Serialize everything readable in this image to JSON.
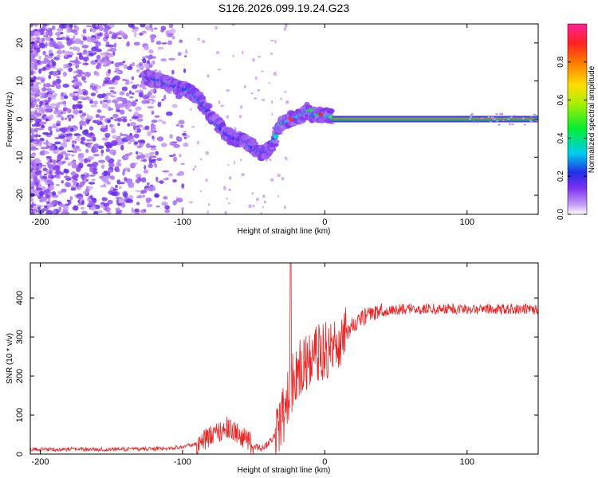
{
  "page": {
    "title": "S126.2026.099.19.24.G23"
  },
  "chart_data": [
    {
      "type": "heatmap",
      "title": "S126.2026.099.19.24.G23",
      "xlabel": "Height of straight line (km)",
      "ylabel": "Frequency (Hz)",
      "xlim": [
        -207,
        150
      ],
      "ylim": [
        -25,
        25
      ],
      "xticks": [
        -200,
        -100,
        0,
        100
      ],
      "yticks": [
        -20,
        -10,
        0,
        10,
        20
      ],
      "colorbar": {
        "label": "Normalized spectral amplitude",
        "range": [
          0,
          1
        ],
        "ticks": [
          0.0,
          0.2,
          0.4,
          0.6,
          0.8
        ],
        "tick_labels": [
          "0.0",
          "0.2",
          "0.4",
          "0.6",
          "0.8"
        ]
      },
      "ridge": {
        "description_points_km_hz": [
          [
            -125,
            11
          ],
          [
            -115,
            10
          ],
          [
            -105,
            8.5
          ],
          [
            -95,
            7.5
          ],
          [
            -88,
            5
          ],
          [
            -82,
            2
          ],
          [
            -76,
            -1
          ],
          [
            -70,
            -3.5
          ],
          [
            -65,
            -5
          ],
          [
            -60,
            -5.5
          ],
          [
            -55,
            -6
          ],
          [
            -50,
            -7.5
          ],
          [
            -45,
            -9
          ],
          [
            -40,
            -8
          ],
          [
            -35,
            -5
          ],
          [
            -32,
            -1.5
          ],
          [
            -28,
            -1
          ],
          [
            -24,
            0
          ],
          [
            -20,
            0.5
          ],
          [
            -15,
            1.2
          ],
          [
            -12,
            2.5
          ],
          [
            -10,
            1
          ],
          [
            -5,
            1.2
          ],
          [
            0,
            1
          ],
          [
            5,
            0.5
          ]
        ],
        "steady_band_from_km": 5,
        "steady_band_freq_hz": 0
      }
    },
    {
      "type": "line",
      "xlabel": "Height of straight line (km)",
      "ylabel": "SNR (10 * v/v)",
      "xlim": [
        -207,
        150
      ],
      "ylim": [
        0,
        490
      ],
      "xticks": [
        -200,
        -100,
        0,
        100
      ],
      "yticks": [
        0,
        100,
        200,
        300,
        400
      ],
      "series": [
        {
          "name": "SNR",
          "color": "#ee2222",
          "envelope_x": [
            -207,
            -150,
            -110,
            -90,
            -80,
            -70,
            -62,
            -55,
            -50,
            -45,
            -40,
            -35,
            -30,
            -25,
            -22,
            -18,
            -15,
            -10,
            -5,
            0,
            5,
            10,
            15,
            20,
            25,
            30,
            40,
            50,
            60,
            80,
            100,
            120,
            150
          ],
          "envelope_y": [
            12,
            12,
            14,
            25,
            45,
            70,
            55,
            35,
            20,
            15,
            25,
            50,
            90,
            150,
            200,
            220,
            230,
            245,
            260,
            265,
            275,
            290,
            310,
            330,
            345,
            355,
            365,
            370,
            372,
            372,
            372,
            372,
            372
          ],
          "spike": {
            "x": -24,
            "y": 490
          }
        }
      ]
    }
  ]
}
